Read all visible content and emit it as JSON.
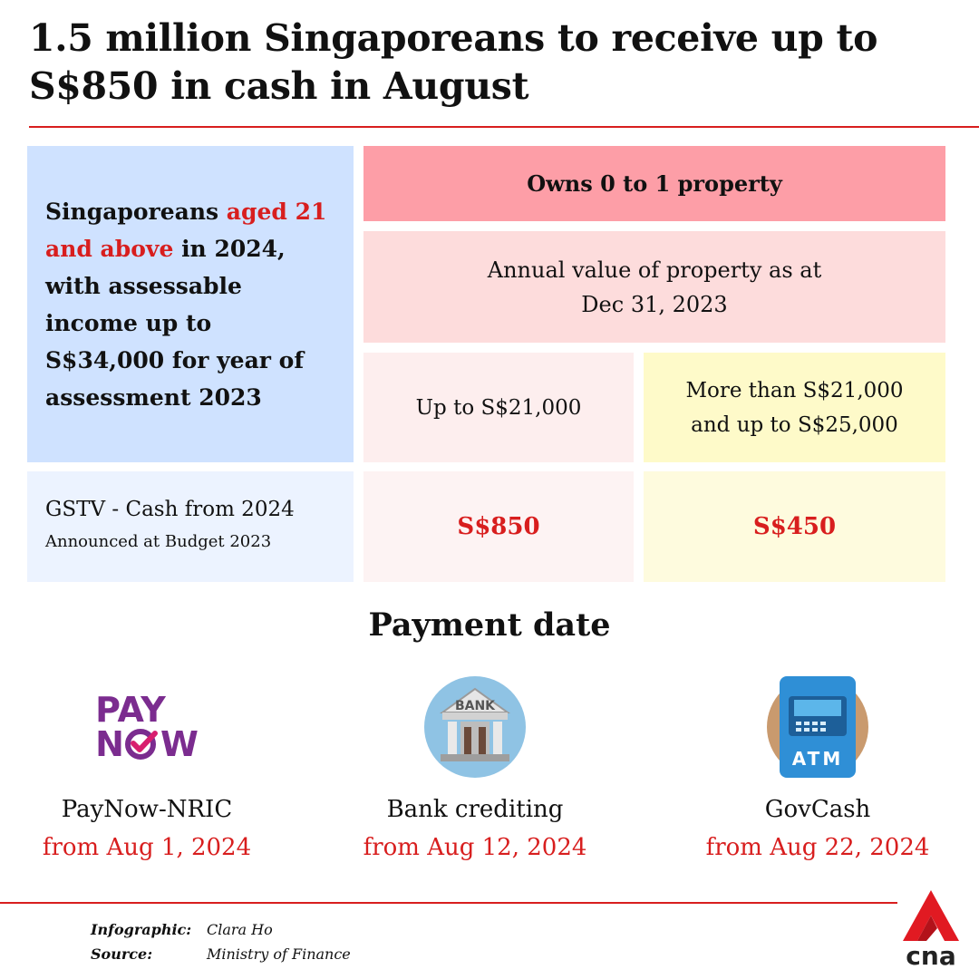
{
  "title": "1.5 million Singaporeans to receive up to S$850 in cash in August",
  "table": {
    "eligibility": {
      "prefix": "Singaporeans ",
      "highlight": "aged 21 and above",
      "suffix": " in 2024, with assessable income up to S$34,000 for year of assessment 2023"
    },
    "owns_header": "Owns 0 to 1 property",
    "annual_value": {
      "line1": "Annual value of property as at",
      "line2": "Dec 31, 2023"
    },
    "columns": [
      {
        "label": "Up to S$21,000"
      },
      {
        "line1": "More than S$21,000",
        "line2": "and up to S$25,000"
      }
    ],
    "scheme": {
      "name": "GSTV - Cash from 2024",
      "note": "Announced at Budget 2023"
    },
    "amounts": [
      "S$850",
      "S$450"
    ]
  },
  "payment": {
    "heading": "Payment date",
    "methods": [
      {
        "icon": "paynow-logo",
        "logo_line1": "PAY",
        "logo_line2_n": "N",
        "logo_line2_w": "W",
        "name": "PayNow-NRIC",
        "date": "from Aug 1, 2024"
      },
      {
        "icon": "bank-icon",
        "icon_text": "BANK",
        "name": "Bank crediting",
        "date": "from Aug 12, 2024"
      },
      {
        "icon": "atm-icon",
        "icon_text": "ATM",
        "name": "GovCash",
        "date": "from Aug 22, 2024"
      }
    ]
  },
  "credits": [
    {
      "label": "Infographic:",
      "value": "Clara Ho"
    },
    {
      "label": "Source:",
      "value": "Ministry of Finance"
    }
  ],
  "brand": {
    "logo_text": "cna"
  },
  "colors": {
    "accent_red": "#d81e1e",
    "eligibility_blue": "#cfe2ff",
    "header_pink": "#fd9ea7",
    "light_pink": "#fddcdc",
    "yellow": "#fefac9",
    "paynow_purple": "#7b2c8f"
  }
}
